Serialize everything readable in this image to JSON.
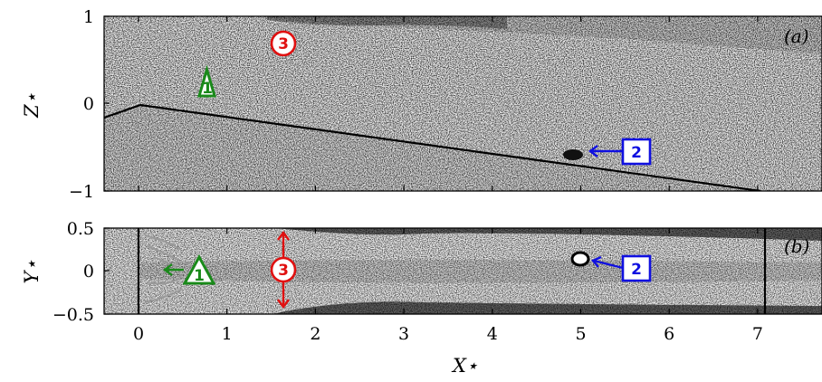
{
  "figure": {
    "panel_a": {
      "label": "(a)",
      "ylabel": "Z⋆",
      "yticks": [
        "1",
        "0",
        "−1"
      ],
      "ylim": [
        -1,
        1
      ],
      "markers": [
        {
          "shape": "triangle",
          "text": "1",
          "color": "#1a8a1a"
        },
        {
          "shape": "square",
          "text": "2",
          "color": "#1010e0"
        },
        {
          "shape": "circle",
          "text": "3",
          "color": "#e01010"
        }
      ]
    },
    "panel_b": {
      "label": "(b)",
      "ylabel": "Y⋆",
      "yticks": [
        "0.5",
        "0",
        "−0.5"
      ],
      "ylim": [
        -0.5,
        0.5
      ],
      "markers": [
        {
          "shape": "triangle",
          "text": "1",
          "color": "#1a8a1a"
        },
        {
          "shape": "square",
          "text": "2",
          "color": "#1010e0"
        },
        {
          "shape": "circle",
          "text": "3",
          "color": "#e01010"
        }
      ]
    },
    "xlabel": "X⋆",
    "xticks": [
      "0",
      "1",
      "2",
      "3",
      "4",
      "5",
      "6",
      "7"
    ],
    "xlim": [
      -0.4,
      7.9
    ]
  }
}
